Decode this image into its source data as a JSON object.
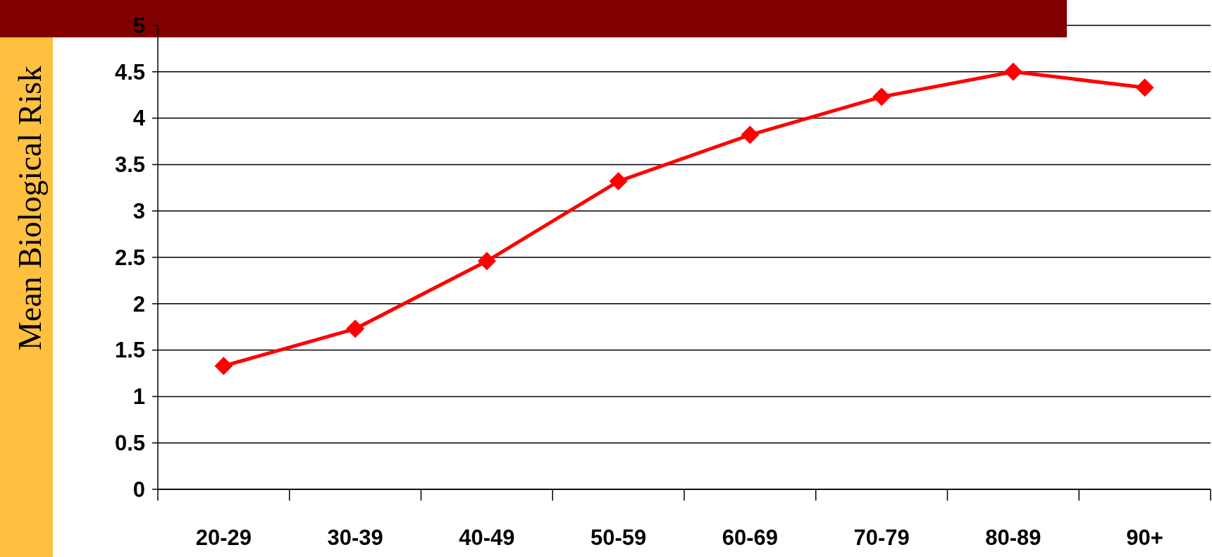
{
  "chart_data": {
    "type": "line",
    "ylabel": "Mean Biological Risk",
    "categories": [
      "20-29",
      "30-39",
      "40-49",
      "50-59",
      "60-69",
      "70-79",
      "80-89",
      "90+"
    ],
    "series": [
      {
        "color": "#ff0000",
        "values": [
          1.33,
          1.73,
          2.46,
          3.32,
          3.82,
          4.23,
          4.5,
          4.33
        ]
      }
    ],
    "ylim": [
      0,
      5
    ],
    "yticks": [
      0,
      0.5,
      1,
      1.5,
      2,
      2.5,
      3,
      3.5,
      4,
      4.5,
      5
    ],
    "grid": "y",
    "marker": "diamond",
    "line_style": "solid"
  }
}
